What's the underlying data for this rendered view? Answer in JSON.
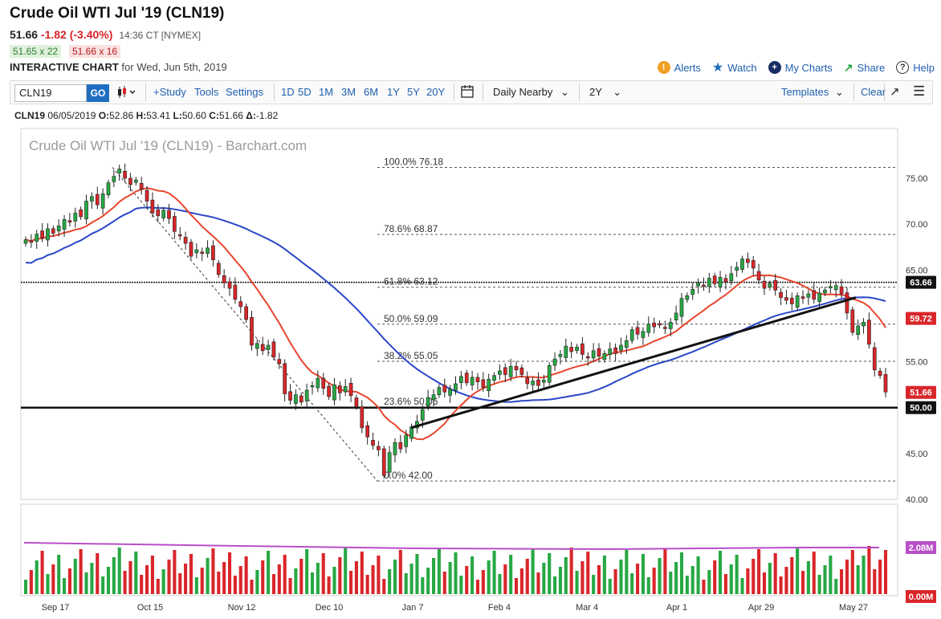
{
  "header": {
    "title": "Crude Oil WTI Jul '19 (CLN19)",
    "last": "51.66",
    "change": "-1.82 (-3.40%)",
    "time": "14:36 CT [NYMEX]",
    "bid": "51.65 x 22",
    "ask": "51.66 x 16",
    "chart_label": "INTERACTIVE CHART",
    "chart_for": "for Wed, Jun 5th, 2019"
  },
  "links": {
    "alerts": "Alerts",
    "watch": "Watch",
    "my_charts": "My Charts",
    "share": "Share",
    "help": "Help"
  },
  "toolbar": {
    "symbol": "CLN19",
    "go": "GO",
    "study": "+Study",
    "tools": "Tools",
    "settings": "Settings",
    "ranges": [
      "1D",
      "5D",
      "1M",
      "3M",
      "6M",
      "1Y",
      "5Y",
      "20Y"
    ],
    "period": "Daily Nearby",
    "span": "2Y",
    "templates": "Templates",
    "clear": "Clear"
  },
  "ohlc": {
    "symbol": "CLN19",
    "date": "06/05/2019",
    "o_label": "O:",
    "o": "52.86",
    "h_label": "H:",
    "h": "53.41",
    "l_label": "L:",
    "l": "50.60",
    "c_label": "C:",
    "c": "51.66",
    "d_label": "Δ:",
    "d": "-1.82"
  },
  "colors": {
    "up": "#27a844",
    "down": "#d9262a",
    "ma_short": "#e8452d",
    "ma_long": "#2a46c8",
    "vol_avg": "#b84fc7",
    "link": "#1f5fae"
  },
  "chart_data": {
    "type": "candlestick",
    "title": "Crude Oil WTI Jul '19 (CLN19) - Barchart.com",
    "ylim": [
      40,
      78
    ],
    "yticks": [
      "75.00",
      "70.00",
      "65.00",
      "60.00",
      "55.00",
      "50.00",
      "45.00",
      "40.00"
    ],
    "xticks": [
      "Sep 17",
      "Oct 15",
      "Nov 12",
      "Dec 10",
      "Jan 7",
      "Feb 4",
      "Mar 4",
      "Apr 1",
      "Apr 29",
      "May 27"
    ],
    "fib_levels": [
      {
        "label": "100.0% 76.18",
        "value": 76.18
      },
      {
        "label": "78.6% 68.87",
        "value": 68.87
      },
      {
        "label": "61.8% 63.12",
        "value": 63.12
      },
      {
        "label": "50.0% 59.09",
        "value": 59.09
      },
      {
        "label": "38.2% 55.05",
        "value": 55.05
      },
      {
        "label": "23.6% 50.06",
        "value": 50.06
      },
      {
        "label": "0.0% 42.00",
        "value": 42.0
      }
    ],
    "price_tags": [
      {
        "text": "63.66",
        "value": 63.66,
        "bg": "#111111"
      },
      {
        "text": "59.72",
        "value": 59.72,
        "bg": "#d9262a"
      },
      {
        "text": "51.66",
        "value": 51.66,
        "bg": "#d9262a"
      },
      {
        "text": "50.00",
        "value": 50.0,
        "bg": "#111111"
      }
    ],
    "horizontal_lines": [
      63.66,
      50.0
    ],
    "trendline": {
      "from": [
        "Jan 7",
        47.8
      ],
      "to": [
        "May 20",
        62.0
      ]
    },
    "volume_labels": [
      "2.08M",
      "0.00M"
    ],
    "closes": [
      68.3,
      68.0,
      68.9,
      68.5,
      69.5,
      69.0,
      69.8,
      70.5,
      70.2,
      71.2,
      70.8,
      72.5,
      73.0,
      72.1,
      73.3,
      74.5,
      75.2,
      76.0,
      75.0,
      74.3,
      74.8,
      73.8,
      72.5,
      71.2,
      70.9,
      71.5,
      70.6,
      69.2,
      68.7,
      67.9,
      66.5,
      67.2,
      66.8,
      67.4,
      66.1,
      64.5,
      63.6,
      63.0,
      61.8,
      61.0,
      59.6,
      56.8,
      57.0,
      56.2,
      56.8,
      55.5,
      54.8,
      51.5,
      50.8,
      51.4,
      50.6,
      51.9,
      52.4,
      53.2,
      52.1,
      51.2,
      52.5,
      51.6,
      52.3,
      51.3,
      50.1,
      47.8,
      46.8,
      45.9,
      45.4,
      42.6,
      45.1,
      46.2,
      45.5,
      47.0,
      47.9,
      48.5,
      49.8,
      51.1,
      51.4,
      52.2,
      51.7,
      52.0,
      52.6,
      53.4,
      52.7,
      53.3,
      52.8,
      52.2,
      53.1,
      53.5,
      54.0,
      53.6,
      54.5,
      54.1,
      53.6,
      52.6,
      52.9,
      52.4,
      53.0,
      54.6,
      55.3,
      55.8,
      56.7,
      56.1,
      56.6,
      55.8,
      55.4,
      56.2,
      55.6,
      55.9,
      56.4,
      55.9,
      56.8,
      57.3,
      58.5,
      58.0,
      58.3,
      59.1,
      58.8,
      59.0,
      58.6,
      59.3,
      60.3,
      61.9,
      62.2,
      62.9,
      63.6,
      63.2,
      64.1,
      63.5,
      64.2,
      63.7,
      64.6,
      65.3,
      66.2,
      65.8,
      65.2,
      63.9,
      63.0,
      63.5,
      62.8,
      62.0,
      61.7,
      61.3,
      62.2,
      61.9,
      62.4,
      61.8,
      62.5,
      62.8,
      63.2,
      63.3,
      62.4,
      60.3,
      58.2,
      58.9,
      59.3,
      56.9,
      54.1,
      53.5,
      51.7
    ]
  }
}
